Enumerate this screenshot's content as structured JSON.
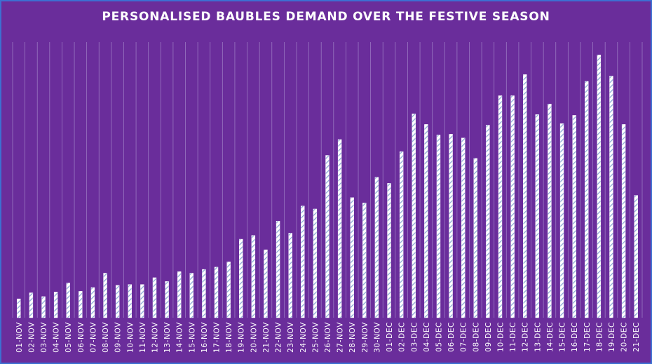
{
  "chart_data": {
    "type": "bar",
    "title": "PERSONALISED BAUBLES DEMAND OVER THE FESTIVE SEASON",
    "xlabel": "",
    "ylabel": "",
    "grid": "vertical",
    "legend": "none",
    "categories": [
      "01-NOV",
      "02-NOV",
      "03-NOV",
      "04-NOV",
      "05-NOV",
      "06-NOV",
      "07-NOV",
      "08-NOV",
      "09-NOV",
      "10-NOV",
      "11-NOV",
      "12-NOV",
      "13-NOV",
      "14-NOV",
      "15-NOV",
      "16-NOV",
      "17-NOV",
      "18-NOV",
      "19-NOV",
      "20-NOV",
      "21-NOV",
      "22-NOV",
      "23-NOV",
      "24-NOV",
      "25-NOV",
      "26-NOV",
      "27-NOV",
      "28-NOV",
      "29-NOV",
      "30-NOV",
      "01-DEC",
      "02-DEC",
      "03-DEC",
      "04-DEC",
      "05-DEC",
      "06-DEC",
      "07-DEC",
      "08-DEC",
      "09-DEC",
      "10-DEC",
      "11-DEC",
      "12-DEC",
      "13-DEC",
      "14-DEC",
      "15-DEC",
      "16-DEC",
      "17-DEC",
      "18-DEC",
      "19-DEC",
      "20-DEC",
      "21-DEC"
    ],
    "values": [
      25,
      33,
      28,
      34,
      46,
      35,
      40,
      59,
      43,
      44,
      44,
      53,
      48,
      61,
      59,
      64,
      67,
      74,
      104,
      109,
      90,
      128,
      112,
      148,
      144,
      215,
      236,
      159,
      152,
      186,
      178,
      220,
      270,
      256,
      242,
      243,
      238,
      211,
      255,
      294,
      294,
      322,
      269,
      283,
      257,
      268,
      313,
      348,
      320,
      256,
      162
    ],
    "ylim": [
      0,
      365
    ],
    "colors": {
      "background": "#6a2d9b",
      "bar_fill": "#ffffff",
      "bar_hatch": "#8aa8d6",
      "grid": "#9a78c2",
      "text": "#ffffff",
      "border": "#3d6fd1"
    }
  }
}
